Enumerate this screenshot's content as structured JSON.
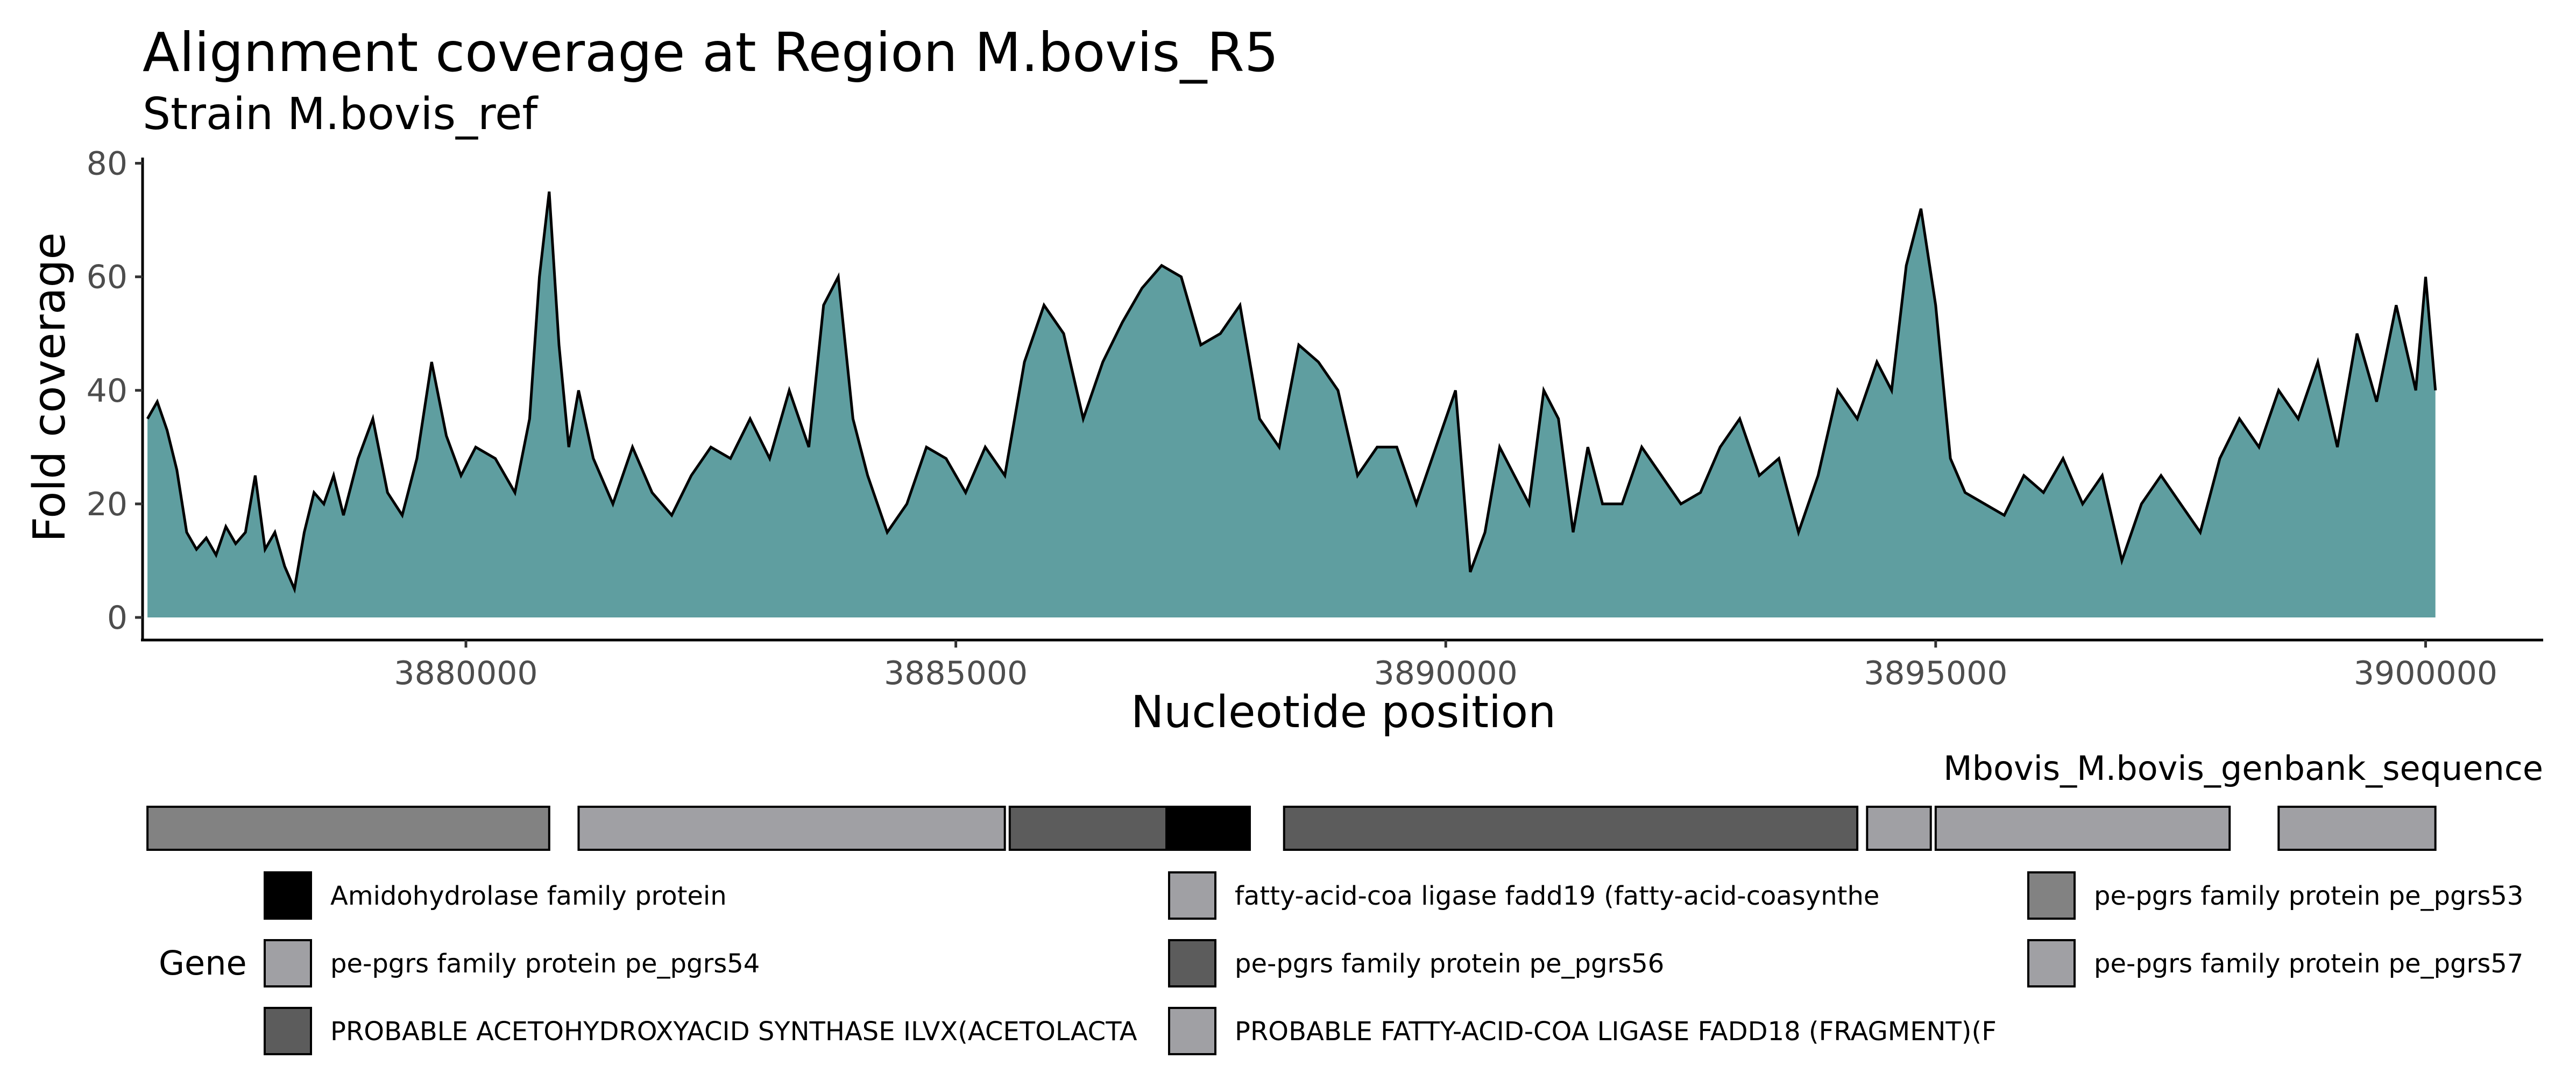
{
  "chart_data": {
    "type": "area",
    "title": "Alignment coverage at Region M.bovis_R5",
    "subtitle": "Strain M.bovis_ref",
    "xlabel": "Nucleotide position",
    "ylabel": "Fold coverage",
    "xlim": [
      3876700,
      3901200
    ],
    "ylim": [
      0,
      81
    ],
    "x_ticks": [
      3880000,
      3885000,
      3890000,
      3895000,
      3900000
    ],
    "y_ticks": [
      0,
      20,
      40,
      60,
      80
    ],
    "grid": false,
    "fill_color": "#5f9ea0",
    "line_color": "#000000",
    "series": [
      {
        "x": [
          3876750,
          3876850,
          3876950,
          3877050,
          3877150,
          3877250,
          3877350,
          3877450,
          3877550,
          3877650,
          3877750,
          3877850,
          3877950,
          3878050,
          3878150,
          3878250,
          3878350,
          3878450,
          3878550,
          3878650,
          3878750,
          3878900,
          3879050,
          3879200,
          3879350,
          3879500,
          3879650,
          3879800,
          3879950,
          3880100,
          3880300,
          3880500,
          3880650,
          3880750,
          3880850,
          3880950,
          3881050,
          3881150,
          3881300,
          3881500,
          3881700,
          3881900,
          3882100,
          3882300,
          3882500,
          3882700,
          3882900,
          3883100,
          3883300,
          3883500,
          3883650,
          3883800,
          3883950,
          3884100,
          3884300,
          3884500,
          3884700,
          3884900,
          3885100,
          3885300,
          3885500,
          3885700,
          3885900,
          3886100,
          3886300,
          3886500,
          3886700,
          3886900,
          3887100,
          3887300,
          3887500,
          3887700,
          3887900,
          3888100,
          3888300,
          3888500,
          3888700,
          3888900,
          3889100,
          3889300,
          3889500,
          3889700,
          3889900,
          3890100,
          3890250,
          3890400,
          3890550,
          3890700,
          3890850,
          3891000,
          3891150,
          3891300,
          3891450,
          3891600,
          3891800,
          3892000,
          3892200,
          3892400,
          3892600,
          3892800,
          3893000,
          3893200,
          3893400,
          3893600,
          3893800,
          3894000,
          3894200,
          3894400,
          3894550,
          3894700,
          3894850,
          3895000,
          3895150,
          3895300,
          3895500,
          3895700,
          3895900,
          3896100,
          3896300,
          3896500,
          3896700,
          3896900,
          3897100,
          3897300,
          3897500,
          3897700,
          3897900,
          3898100,
          3898300,
          3898500,
          3898700,
          3898900,
          3899100,
          3899300,
          3899500,
          3899700,
          3899900,
          3900000,
          3900100
        ],
        "y": [
          35,
          38,
          33,
          26,
          15,
          12,
          14,
          11,
          16,
          13,
          15,
          25,
          12,
          15,
          9,
          5,
          15,
          22,
          20,
          25,
          18,
          28,
          35,
          22,
          18,
          28,
          45,
          32,
          25,
          30,
          28,
          22,
          35,
          60,
          75,
          48,
          30,
          40,
          28,
          20,
          30,
          22,
          18,
          25,
          30,
          28,
          35,
          28,
          40,
          30,
          55,
          60,
          35,
          25,
          15,
          20,
          30,
          28,
          22,
          30,
          25,
          45,
          55,
          50,
          35,
          45,
          52,
          58,
          62,
          60,
          48,
          50,
          55,
          35,
          30,
          48,
          45,
          40,
          25,
          30,
          30,
          20,
          30,
          40,
          8,
          15,
          30,
          25,
          20,
          40,
          35,
          15,
          30,
          20,
          20,
          30,
          25,
          20,
          22,
          30,
          35,
          25,
          28,
          15,
          25,
          40,
          35,
          45,
          40,
          62,
          72,
          55,
          28,
          22,
          20,
          18,
          25,
          22,
          28,
          20,
          25,
          10,
          20,
          25,
          20,
          15,
          28,
          35,
          30,
          40,
          35,
          45,
          30,
          50,
          38,
          55,
          40,
          60,
          40
        ]
      }
    ]
  },
  "annotation_track": {
    "label": "Mbovis_M.bovis_genbank_sequence",
    "blocks": [
      {
        "start": 3876750,
        "end": 3880850,
        "gene": "pe-pgrs family protein pe_pgrs53"
      },
      {
        "start": 3881150,
        "end": 3885500,
        "gene": "PROBABLE FATTY-ACID-COA LIGASE FADD18 (FRAGMENT)(F"
      },
      {
        "start": 3885550,
        "end": 3887150,
        "gene": "PROBABLE ACETOHYDROXYACID SYNTHASE ILVX(ACETOLACTA"
      },
      {
        "start": 3887150,
        "end": 3888000,
        "gene": "Amidohydrolase family protein"
      },
      {
        "start": 3888350,
        "end": 3894200,
        "gene": "pe-pgrs family protein pe_pgrs56"
      },
      {
        "start": 3894300,
        "end": 3894950,
        "gene": "fatty-acid-coa ligase fadd19 (fatty-acid-coasynthe"
      },
      {
        "start": 3895000,
        "end": 3898000,
        "gene": "pe-pgrs family protein pe_pgrs54"
      },
      {
        "start": 3898500,
        "end": 3900100,
        "gene": "pe-pgrs family protein pe_pgrs57"
      }
    ]
  },
  "legend": {
    "title": "Gene",
    "entries": [
      {
        "label": "Amidohydrolase family protein",
        "color": "#000000"
      },
      {
        "label": "fatty-acid-coa ligase fadd19 (fatty-acid-coasynthe",
        "color": "#a0a0a4"
      },
      {
        "label": "pe-pgrs family protein pe_pgrs53",
        "color": "#828282"
      },
      {
        "label": "pe-pgrs family protein pe_pgrs54",
        "color": "#a0a0a4"
      },
      {
        "label": "pe-pgrs family protein pe_pgrs56",
        "color": "#5c5c5c"
      },
      {
        "label": "pe-pgrs family protein pe_pgrs57",
        "color": "#a0a0a4"
      },
      {
        "label": "PROBABLE ACETOHYDROXYACID SYNTHASE ILVX(ACETOLACTA",
        "color": "#5c5c5c"
      },
      {
        "label": "PROBABLE FATTY-ACID-COA LIGASE FADD18 (FRAGMENT)(F",
        "color": "#a0a0a4"
      }
    ]
  }
}
